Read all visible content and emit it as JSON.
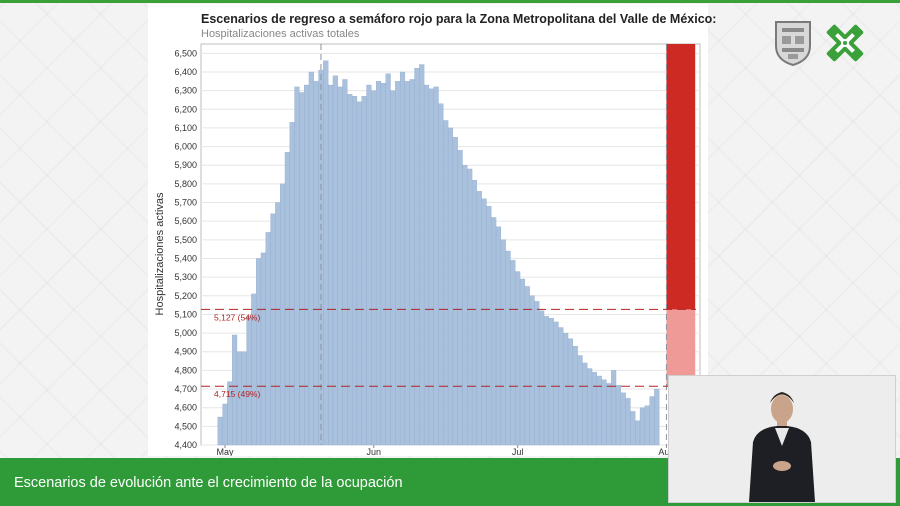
{
  "title": "Escenarios de regreso a semáforo rojo para la Zona Metropolitana del Valle de México:",
  "subtitle": "Hospitalizaciones activas totales",
  "banner": "Escenarios de evolución ante el crecimiento de la ocupación",
  "colors": {
    "bar": "#a9c1dd",
    "bar_stroke": "#8aa6c8",
    "scenario_dark": "#cc2a22",
    "scenario_light": "#ef9a96",
    "threshold": "#b22222",
    "brand_green": "#2e9b38"
  },
  "icons": {
    "seal": "cdmx-seal-icon",
    "logo": "cdmx-x-logo-icon"
  },
  "chart_data": {
    "type": "bar",
    "title": "Escenarios de regreso a semáforo rojo para la Zona Metropolitana del Valle de México:",
    "subtitle": "Hospitalizaciones activas totales",
    "ylabel": "Hospitalizaciones activas",
    "ylim": [
      4400,
      6550
    ],
    "yticks": [
      "4,400",
      "4,500",
      "4,600",
      "4,700",
      "4,800",
      "4,900",
      "5,000",
      "5,100",
      "5,200",
      "5,300",
      "5,400",
      "5,500",
      "5,600",
      "5,700",
      "5,800",
      "5,900",
      "6,000",
      "6,100",
      "6,200",
      "6,300",
      "6,400",
      "6,500"
    ],
    "xticks": [
      "May",
      "Jun",
      "Jul",
      "Aug"
    ],
    "xtick_positions": [
      "2020-05-01",
      "2020-06-01",
      "2020-07-01",
      "2020-08-01"
    ],
    "x_start": "2020-04-26",
    "x_end": "2020-08-08",
    "dates_first": "2020-04-30",
    "values": [
      4550,
      4620,
      4740,
      4990,
      4900,
      4900,
      5090,
      5210,
      5400,
      5430,
      5540,
      5640,
      5700,
      5800,
      5970,
      6130,
      6320,
      6290,
      6330,
      6400,
      6350,
      6410,
      6460,
      6330,
      6380,
      6320,
      6360,
      6280,
      6270,
      6240,
      6270,
      6330,
      6300,
      6350,
      6340,
      6390,
      6300,
      6350,
      6400,
      6350,
      6360,
      6420,
      6440,
      6330,
      6310,
      6320,
      6230,
      6140,
      6100,
      6050,
      5980,
      5900,
      5880,
      5820,
      5760,
      5720,
      5680,
      5620,
      5570,
      5500,
      5440,
      5390,
      5330,
      5290,
      5250,
      5200,
      5170,
      5120,
      5090,
      5080,
      5060,
      5030,
      5000,
      4970,
      4930,
      4880,
      4840,
      4810,
      4790,
      4770,
      4750,
      4730,
      4800,
      4720,
      4680,
      4650,
      4580,
      4530,
      4600,
      4610,
      4660,
      4700
    ],
    "annotations": [
      {
        "label": "5,127 (54%)",
        "value": 5127
      },
      {
        "label": "4,715 (49%)",
        "value": 4715
      }
    ],
    "vlines": [
      "2020-05-21",
      "2020-08-01"
    ],
    "scenario_x": [
      "2020-08-01",
      "2020-08-07"
    ],
    "scenario_bands": [
      {
        "from": 4715,
        "to": 5127,
        "color": "light"
      },
      {
        "from": 5127,
        "to": 6550,
        "color": "dark"
      }
    ],
    "grid": true,
    "legend": "none"
  }
}
